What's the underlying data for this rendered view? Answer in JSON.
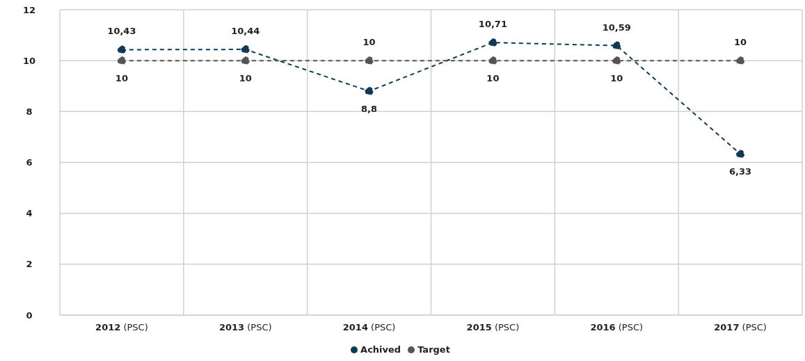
{
  "chart_data": {
    "type": "line",
    "categories": [
      "2012 (PSC)",
      "2013 (PSC)",
      "2014 (PSC)",
      "2015 (PSC)",
      "2016 (PSC)",
      "2017 (PSC)"
    ],
    "series": [
      {
        "name": "Achived",
        "color": "#0e3a57",
        "values": [
          10.43,
          10.44,
          8.8,
          10.71,
          10.59,
          6.33
        ],
        "value_labels": [
          "10,43",
          "10,44",
          "8,8",
          "10,71",
          "10,59",
          "6,33"
        ]
      },
      {
        "name": "Target",
        "color": "#555555",
        "values": [
          10,
          10,
          10,
          10,
          10,
          10
        ],
        "value_labels": [
          "10",
          "10",
          "10",
          "10",
          "10",
          "10"
        ]
      }
    ],
    "ylim": [
      0,
      12
    ],
    "yticks": [
      0,
      2,
      4,
      6,
      8,
      10,
      12
    ],
    "grid": true,
    "legend": "bottom",
    "marker": "circle",
    "line_style": "dashed"
  }
}
